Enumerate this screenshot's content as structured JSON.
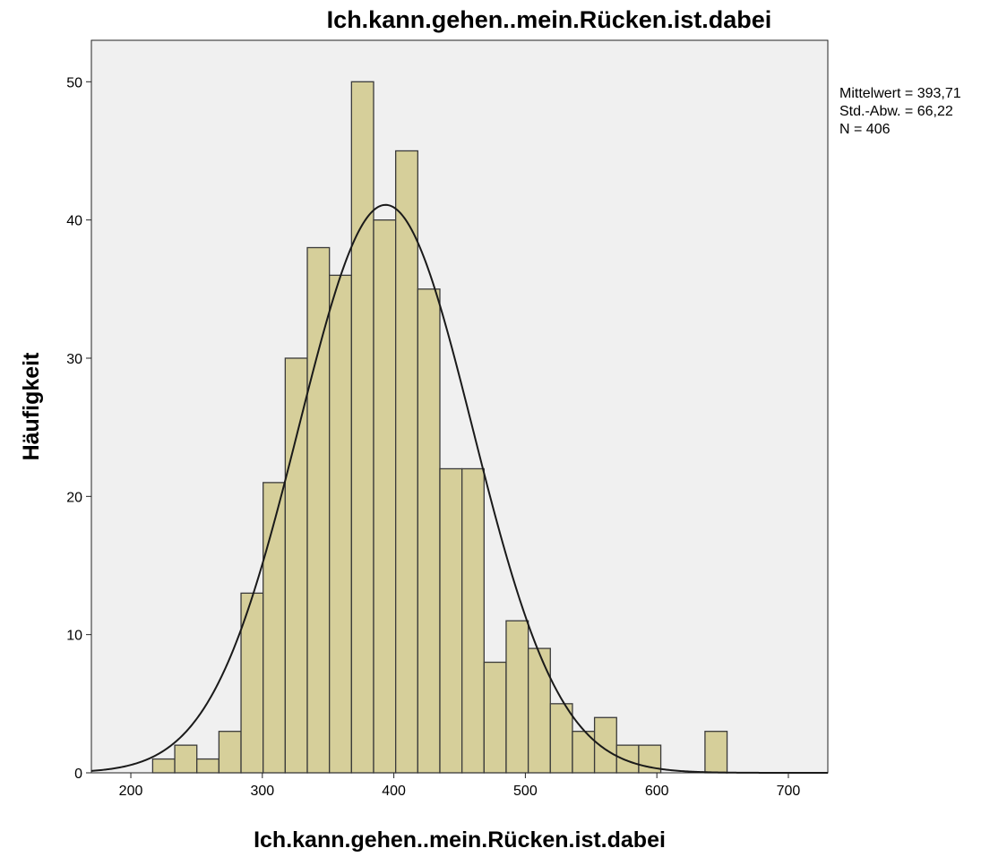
{
  "chart_data": {
    "type": "bar",
    "title": "Ich.kann.gehen..mein.Rücken.ist.dabei",
    "xlabel": "Ich.kann.gehen..mein.Rücken.ist.dabei",
    "ylabel": "Häufigkeit",
    "xlim": [
      170,
      730
    ],
    "ylim": [
      0,
      53
    ],
    "xticks": [
      200,
      300,
      400,
      500,
      600,
      700
    ],
    "yticks": [
      0,
      10,
      20,
      30,
      40,
      50
    ],
    "bin_width": 16.8,
    "bins": [
      {
        "start": 216.6,
        "value": 1
      },
      {
        "start": 233.4,
        "value": 2
      },
      {
        "start": 250.2,
        "value": 1
      },
      {
        "start": 267.0,
        "value": 3
      },
      {
        "start": 283.8,
        "value": 13
      },
      {
        "start": 300.6,
        "value": 21
      },
      {
        "start": 317.4,
        "value": 30
      },
      {
        "start": 334.2,
        "value": 38
      },
      {
        "start": 351.0,
        "value": 36
      },
      {
        "start": 367.8,
        "value": 50
      },
      {
        "start": 384.6,
        "value": 40
      },
      {
        "start": 401.4,
        "value": 45
      },
      {
        "start": 418.2,
        "value": 35
      },
      {
        "start": 435.0,
        "value": 22
      },
      {
        "start": 451.8,
        "value": 22
      },
      {
        "start": 468.6,
        "value": 8
      },
      {
        "start": 485.4,
        "value": 11
      },
      {
        "start": 502.2,
        "value": 9
      },
      {
        "start": 519.0,
        "value": 5
      },
      {
        "start": 535.8,
        "value": 3
      },
      {
        "start": 552.6,
        "value": 4
      },
      {
        "start": 569.4,
        "value": 2
      },
      {
        "start": 586.2,
        "value": 2
      },
      {
        "start": 636.6,
        "value": 3
      }
    ],
    "normal_curve": {
      "mean": 393.71,
      "sd": 66.22,
      "n": 406
    },
    "stats_lines": [
      "Mittelwert = 393,71",
      "Std.-Abw. = 66,22",
      "N = 406"
    ],
    "grid": false,
    "colors": {
      "bar_fill": "#d6cf9a",
      "bar_stroke": "#3a3a3a",
      "plot_background": "#f0f0f0",
      "curve": "#1a1a1a"
    }
  }
}
